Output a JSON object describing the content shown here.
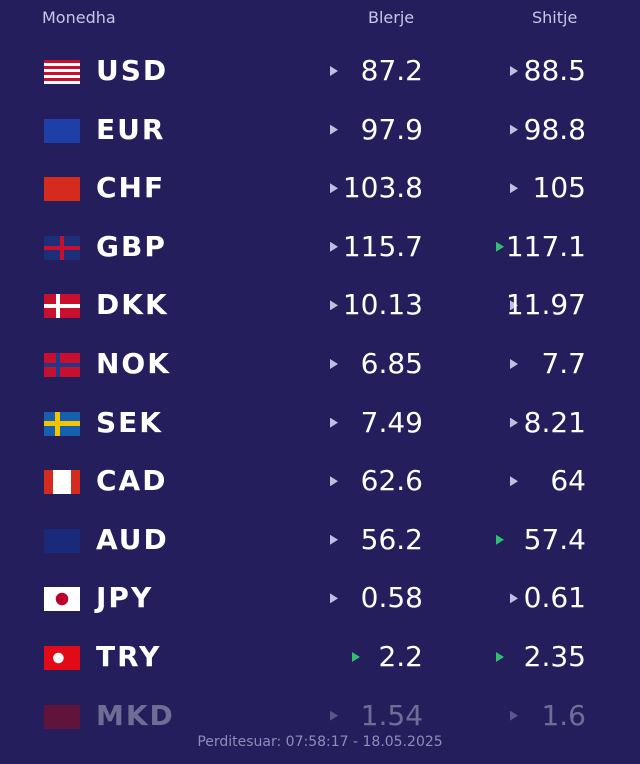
{
  "header": {
    "currency": "Monedha",
    "buy": "Blerje",
    "sell": "Shitje"
  },
  "rows": [
    {
      "code": "USD",
      "buy": 87.2,
      "sell": 88.5
    },
    {
      "code": "EUR",
      "buy": 97.9,
      "sell": 98.8
    },
    {
      "code": "CHF",
      "buy": 103.8,
      "sell": 105
    },
    {
      "code": "GBP",
      "buy": 115.7,
      "sell": 117.1
    },
    {
      "code": "DKK",
      "buy": 10.13,
      "sell": 11.97
    },
    {
      "code": "NOK",
      "buy": 6.85,
      "sell": 7.7
    },
    {
      "code": "SEK",
      "buy": 7.49,
      "sell": 8.21
    },
    {
      "code": "CAD",
      "buy": 62.6,
      "sell": 64
    },
    {
      "code": "AUD",
      "buy": 56.2,
      "sell": 57.4
    },
    {
      "code": "JPY",
      "buy": 0.58,
      "sell": 0.61
    },
    {
      "code": "TRY",
      "buy": 2.2,
      "sell": 2.35
    },
    {
      "code": "MKD",
      "buy": 1.54,
      "sell": 1.6
    }
  ],
  "footer": "Perditesuar: 07:58:17 - 18.05.2025"
}
